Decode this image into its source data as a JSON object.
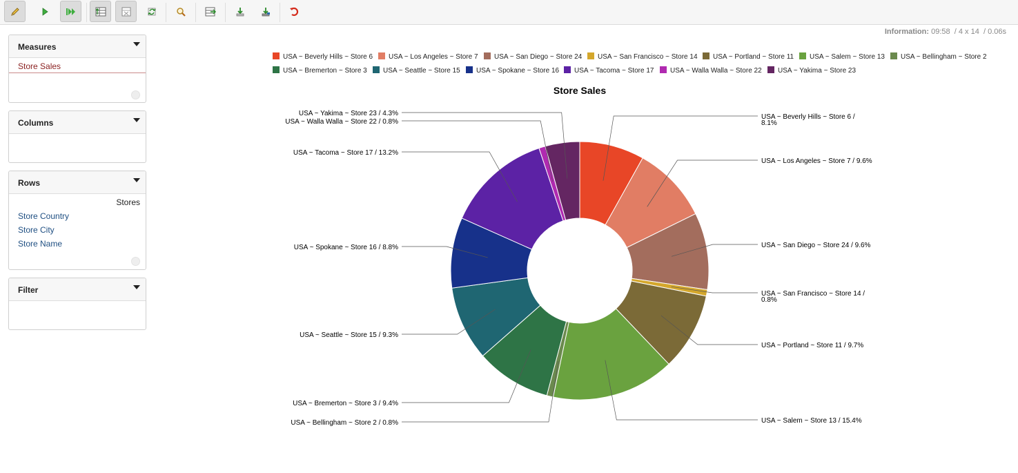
{
  "toolbar": {
    "buttons": [
      {
        "name": "edit-mode-button",
        "icon": "pencil-icon",
        "active": true
      },
      {
        "name": "run-query-button",
        "icon": "play-icon",
        "active": false
      },
      {
        "name": "automatic-execution-button",
        "icon": "fast-forward-icon",
        "active": true
      },
      {
        "name": "toggle-fields-button",
        "icon": "table-fields-icon",
        "active": true
      },
      {
        "name": "hide-empty-button",
        "icon": "grid-hide-icon",
        "active": true
      },
      {
        "name": "swap-axes-button",
        "icon": "swap-icon",
        "active": false
      },
      {
        "name": "drillthrough-button",
        "icon": "magnifier-icon",
        "active": false
      },
      {
        "name": "switch-render-button",
        "icon": "export-grid-icon",
        "active": false
      },
      {
        "name": "export-xls-button",
        "icon": "download-icon",
        "active": false
      },
      {
        "name": "export-csv-button",
        "icon": "download-alt-icon",
        "active": false
      },
      {
        "name": "undo-button",
        "icon": "undo-icon",
        "active": false
      }
    ]
  },
  "info": {
    "label": "Information:",
    "time": "09:58",
    "dimensions": "/  4 x 14",
    "duration": "/  0.06s"
  },
  "panels": {
    "measures": {
      "title": "Measures",
      "items": [
        "Store Sales"
      ]
    },
    "columns": {
      "title": "Columns",
      "items": []
    },
    "rows": {
      "title": "Rows",
      "header": "Stores",
      "items": [
        "Store Country",
        "Store City",
        "Store Name"
      ]
    },
    "filter": {
      "title": "Filter",
      "items": []
    }
  },
  "chart_data": {
    "type": "pie",
    "donut": true,
    "title": "Store Sales",
    "legend_position": "top",
    "slices": [
      {
        "label": "USA ~ Beverly Hills ~ Store 6",
        "percent": 8.1,
        "color": "#e84627"
      },
      {
        "label": "USA ~ Los Angeles ~ Store 7",
        "percent": 9.6,
        "color": "#e17d64"
      },
      {
        "label": "USA ~ San Diego ~ Store 24",
        "percent": 9.6,
        "color": "#a36d5d"
      },
      {
        "label": "USA ~ San Francisco ~ Store 14",
        "percent": 0.8,
        "color": "#d4a72c"
      },
      {
        "label": "USA ~ Portland ~ Store 11",
        "percent": 9.7,
        "color": "#7b6a37"
      },
      {
        "label": "USA ~ Salem ~ Store 13",
        "percent": 15.4,
        "color": "#6aa23f"
      },
      {
        "label": "USA ~ Bellingham ~ Store 2",
        "percent": 0.8,
        "color": "#6b8a4e"
      },
      {
        "label": "USA ~ Bremerton ~ Store 3",
        "percent": 9.4,
        "color": "#2e7446"
      },
      {
        "label": "USA ~ Seattle ~ Store 15",
        "percent": 9.3,
        "color": "#1f6672"
      },
      {
        "label": "USA ~ Spokane ~ Store 16",
        "percent": 8.8,
        "color": "#17318a"
      },
      {
        "label": "USA ~ Tacoma ~ Store 17",
        "percent": 13.2,
        "color": "#5c22a5"
      },
      {
        "label": "USA ~ Walla Walla ~ Store 22",
        "percent": 0.8,
        "color": "#b02ab0"
      },
      {
        "label": "USA ~ Yakima ~ Store 23",
        "percent": 4.3,
        "color": "#642662"
      }
    ]
  }
}
